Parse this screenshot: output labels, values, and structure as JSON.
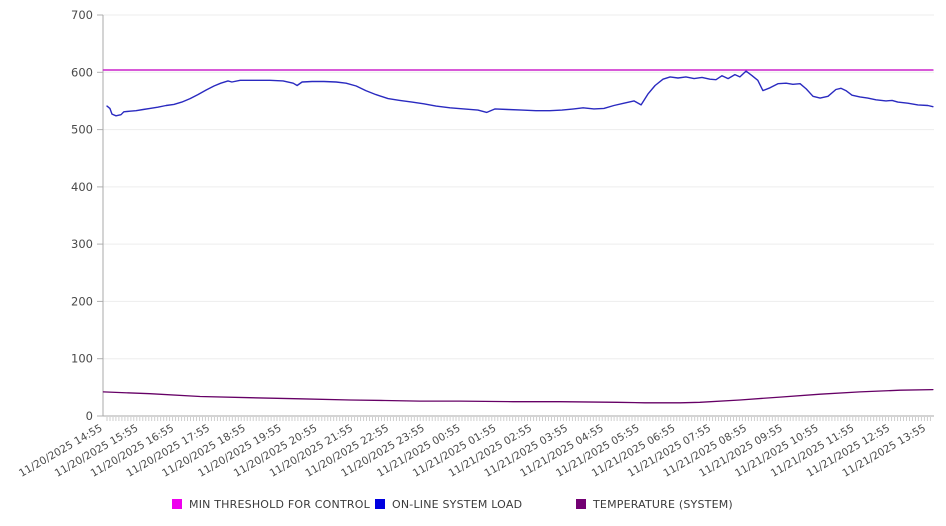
{
  "chart_data": {
    "type": "line",
    "title": "",
    "xlabel": "",
    "ylabel": "",
    "ylim": [
      0,
      700
    ],
    "y_ticks": [
      0,
      100,
      200,
      300,
      400,
      500,
      600,
      700
    ],
    "grid": "horizontal",
    "legend_position": "bottom",
    "x_axis_note": "hourly major labels, minor ticks every 5 minutes, x in hours from first label",
    "minor_tick_hours": 0.08333,
    "x_max": 23.0,
    "x_labels": [
      "11/20/2025 14:55",
      "11/20/2025 15:55",
      "11/20/2025 16:55",
      "11/20/2025 17:55",
      "11/20/2025 18:55",
      "11/20/2025 19:55",
      "11/20/2025 20:55",
      "11/20/2025 21:55",
      "11/20/2025 22:55",
      "11/20/2025 23:55",
      "11/21/2025 00:55",
      "11/21/2025 01:55",
      "11/21/2025 02:55",
      "11/21/2025 03:55",
      "11/21/2025 04:55",
      "11/21/2025 05:55",
      "11/21/2025 06:55",
      "11/21/2025 07:55",
      "11/21/2025 08:55",
      "11/21/2025 09:55",
      "11/21/2025 10:55",
      "11/21/2025 11:55",
      "11/21/2025 12:55",
      "11/21/2025 13:55"
    ],
    "series": [
      {
        "name": "MIN THRESHOLD FOR CONTROL",
        "color": "#cc22cc",
        "legend_color": "#ee00ee",
        "stroke_width": 1.6,
        "points": [
          [
            -0.1,
            604
          ],
          [
            23.07,
            604
          ]
        ]
      },
      {
        "name": "ON-LINE SYSTEM LOAD",
        "color": "#2a2ac0",
        "legend_color": "#0000e0",
        "stroke_width": 1.4,
        "points": [
          [
            0,
            541
          ],
          [
            0.08,
            537
          ],
          [
            0.14,
            527
          ],
          [
            0.25,
            524
          ],
          [
            0.39,
            526
          ],
          [
            0.47,
            531
          ],
          [
            0.64,
            532
          ],
          [
            0.81,
            533
          ],
          [
            1.01,
            535
          ],
          [
            1.2,
            537
          ],
          [
            1.42,
            539
          ],
          [
            1.65,
            542
          ],
          [
            1.87,
            544
          ],
          [
            2.09,
            548
          ],
          [
            2.32,
            554
          ],
          [
            2.54,
            561
          ],
          [
            2.77,
            569
          ],
          [
            2.99,
            576
          ],
          [
            3.18,
            581
          ],
          [
            3.38,
            585
          ],
          [
            3.49,
            583
          ],
          [
            3.72,
            586
          ],
          [
            4.13,
            586
          ],
          [
            4.55,
            586
          ],
          [
            4.92,
            585
          ],
          [
            5.2,
            581
          ],
          [
            5.31,
            577
          ],
          [
            5.45,
            583
          ],
          [
            5.73,
            584
          ],
          [
            6.06,
            584
          ],
          [
            6.4,
            583
          ],
          [
            6.68,
            581
          ],
          [
            6.96,
            576
          ],
          [
            7.23,
            568
          ],
          [
            7.51,
            561
          ],
          [
            7.85,
            554
          ],
          [
            8.18,
            551
          ],
          [
            8.52,
            548
          ],
          [
            8.85,
            545
          ],
          [
            9.19,
            541
          ],
          [
            9.58,
            538
          ],
          [
            9.97,
            536
          ],
          [
            10.36,
            534
          ],
          [
            10.61,
            530
          ],
          [
            10.84,
            536
          ],
          [
            11.2,
            535
          ],
          [
            11.59,
            534
          ],
          [
            11.98,
            533
          ],
          [
            12.37,
            533
          ],
          [
            12.71,
            534
          ],
          [
            13.04,
            536
          ],
          [
            13.3,
            538
          ],
          [
            13.6,
            536
          ],
          [
            13.88,
            537
          ],
          [
            14.16,
            542
          ],
          [
            14.44,
            546
          ],
          [
            14.72,
            550
          ],
          [
            14.92,
            543
          ],
          [
            15.11,
            562
          ],
          [
            15.31,
            577
          ],
          [
            15.53,
            588
          ],
          [
            15.73,
            592
          ],
          [
            15.95,
            590
          ],
          [
            16.17,
            592
          ],
          [
            16.4,
            589
          ],
          [
            16.62,
            591
          ],
          [
            16.84,
            588
          ],
          [
            17.01,
            587
          ],
          [
            17.18,
            594
          ],
          [
            17.35,
            589
          ],
          [
            17.54,
            596
          ],
          [
            17.68,
            592
          ],
          [
            17.85,
            602
          ],
          [
            18.02,
            594
          ],
          [
            18.18,
            586
          ],
          [
            18.32,
            568
          ],
          [
            18.52,
            573
          ],
          [
            18.74,
            580
          ],
          [
            18.97,
            581
          ],
          [
            19.16,
            579
          ],
          [
            19.36,
            580
          ],
          [
            19.53,
            571
          ],
          [
            19.72,
            558
          ],
          [
            19.92,
            555
          ],
          [
            20.14,
            558
          ],
          [
            20.36,
            570
          ],
          [
            20.5,
            572
          ],
          [
            20.64,
            568
          ],
          [
            20.81,
            560
          ],
          [
            21.03,
            557
          ],
          [
            21.25,
            555
          ],
          [
            21.48,
            552
          ],
          [
            21.76,
            550
          ],
          [
            21.93,
            551
          ],
          [
            22.09,
            548
          ],
          [
            22.37,
            546
          ],
          [
            22.65,
            543
          ],
          [
            22.93,
            542
          ],
          [
            23.07,
            540
          ]
        ]
      },
      {
        "name": "TEMPERATURE (SYSTEM)",
        "color": "#660066",
        "legend_color": "#730073",
        "stroke_width": 1.3,
        "points": [
          [
            -0.1,
            42
          ],
          [
            1.2,
            39
          ],
          [
            2.6,
            34
          ],
          [
            3.99,
            32
          ],
          [
            5.39,
            30
          ],
          [
            6.79,
            28
          ],
          [
            7.77,
            27
          ],
          [
            8.74,
            26
          ],
          [
            9.86,
            26
          ],
          [
            11.34,
            25
          ],
          [
            12.65,
            25
          ],
          [
            14.25,
            24
          ],
          [
            15.03,
            23
          ],
          [
            16.01,
            23
          ],
          [
            16.56,
            24
          ],
          [
            17.68,
            28
          ],
          [
            18.8,
            33
          ],
          [
            19.92,
            38
          ],
          [
            21.03,
            42
          ],
          [
            22.15,
            45
          ],
          [
            23.07,
            46
          ]
        ]
      }
    ]
  }
}
